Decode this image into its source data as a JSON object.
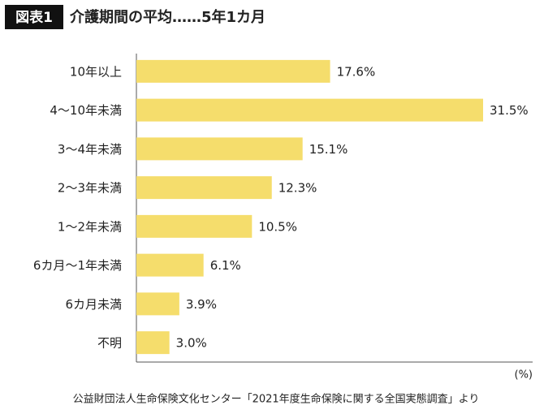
{
  "chart_data": {
    "type": "bar",
    "orientation": "horizontal",
    "figure_label": "図表1",
    "title": "介護期間の平均……5年1カ月",
    "categories": [
      "10年以上",
      "4～10年未満",
      "3～4年未満",
      "2～3年未満",
      "1～2年未満",
      "6カ月～1年未満",
      "6カ月未満",
      "不明"
    ],
    "values": [
      17.6,
      31.5,
      15.1,
      12.3,
      10.5,
      6.1,
      3.9,
      3.0
    ],
    "value_labels": [
      "17.6%",
      "31.5%",
      "15.1%",
      "12.3%",
      "10.5%",
      "6.1%",
      "3.9%",
      "3.0%"
    ],
    "color": "#f5dd6c",
    "xlim": [
      0,
      36
    ],
    "x_label": "(%)",
    "source": "公益財団法人生命保険文化センター「2021年度生命保険に関する全国実態調査」より"
  }
}
